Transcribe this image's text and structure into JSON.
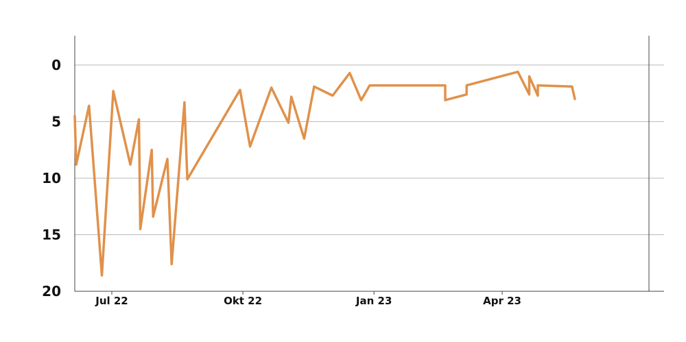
{
  "chart_data": {
    "type": "line",
    "title": "",
    "xlabel": "",
    "ylabel": "",
    "y_axis_inverted": true,
    "ylim": [
      20,
      -2.6
    ],
    "xlim": [
      "2022-06-05",
      "2023-07-13"
    ],
    "grid": "horizontal",
    "legend": "none",
    "x_ticks": [
      {
        "label": "Jul 22",
        "date": "2022-07-01"
      },
      {
        "label": "Okt 22",
        "date": "2022-10-01"
      },
      {
        "label": "Jan 23",
        "date": "2023-01-01"
      },
      {
        "label": "Apr 23",
        "date": "2023-04-01"
      }
    ],
    "y_ticks": [
      0,
      5,
      10,
      15,
      20
    ],
    "series": [
      {
        "color": "#e0914a",
        "points": [
          {
            "x": "2022-06-05",
            "y": 4.5
          },
          {
            "x": "2022-06-06",
            "y": 8.8
          },
          {
            "x": "2022-06-15",
            "y": 3.6
          },
          {
            "x": "2022-06-24",
            "y": 18.6
          },
          {
            "x": "2022-07-02",
            "y": 2.3
          },
          {
            "x": "2022-07-14",
            "y": 8.8
          },
          {
            "x": "2022-07-20",
            "y": 4.8
          },
          {
            "x": "2022-07-21",
            "y": 14.5
          },
          {
            "x": "2022-07-29",
            "y": 7.5
          },
          {
            "x": "2022-07-30",
            "y": 13.4
          },
          {
            "x": "2022-08-09",
            "y": 8.3
          },
          {
            "x": "2022-08-12",
            "y": 17.6
          },
          {
            "x": "2022-08-21",
            "y": 3.3
          },
          {
            "x": "2022-08-23",
            "y": 10.1
          },
          {
            "x": "2022-09-29",
            "y": 2.2
          },
          {
            "x": "2022-10-06",
            "y": 7.2
          },
          {
            "x": "2022-10-21",
            "y": 2.0
          },
          {
            "x": "2022-11-02",
            "y": 5.1
          },
          {
            "x": "2022-11-04",
            "y": 2.8
          },
          {
            "x": "2022-11-13",
            "y": 6.5
          },
          {
            "x": "2022-11-20",
            "y": 1.9
          },
          {
            "x": "2022-12-03",
            "y": 2.7
          },
          {
            "x": "2022-12-15",
            "y": 0.7
          },
          {
            "x": "2022-12-23",
            "y": 3.1
          },
          {
            "x": "2022-12-29",
            "y": 1.8
          },
          {
            "x": "2023-02-20",
            "y": 1.8
          },
          {
            "x": "2023-02-20",
            "y": 3.1
          },
          {
            "x": "2023-03-07",
            "y": 2.6
          },
          {
            "x": "2023-03-07",
            "y": 1.8
          },
          {
            "x": "2023-04-12",
            "y": 0.6
          },
          {
            "x": "2023-04-20",
            "y": 2.6
          },
          {
            "x": "2023-04-20",
            "y": 1.0
          },
          {
            "x": "2023-04-26",
            "y": 2.7
          },
          {
            "x": "2023-04-26",
            "y": 1.8
          },
          {
            "x": "2023-05-20",
            "y": 1.9
          },
          {
            "x": "2023-05-22",
            "y": 3.0
          }
        ]
      }
    ]
  }
}
